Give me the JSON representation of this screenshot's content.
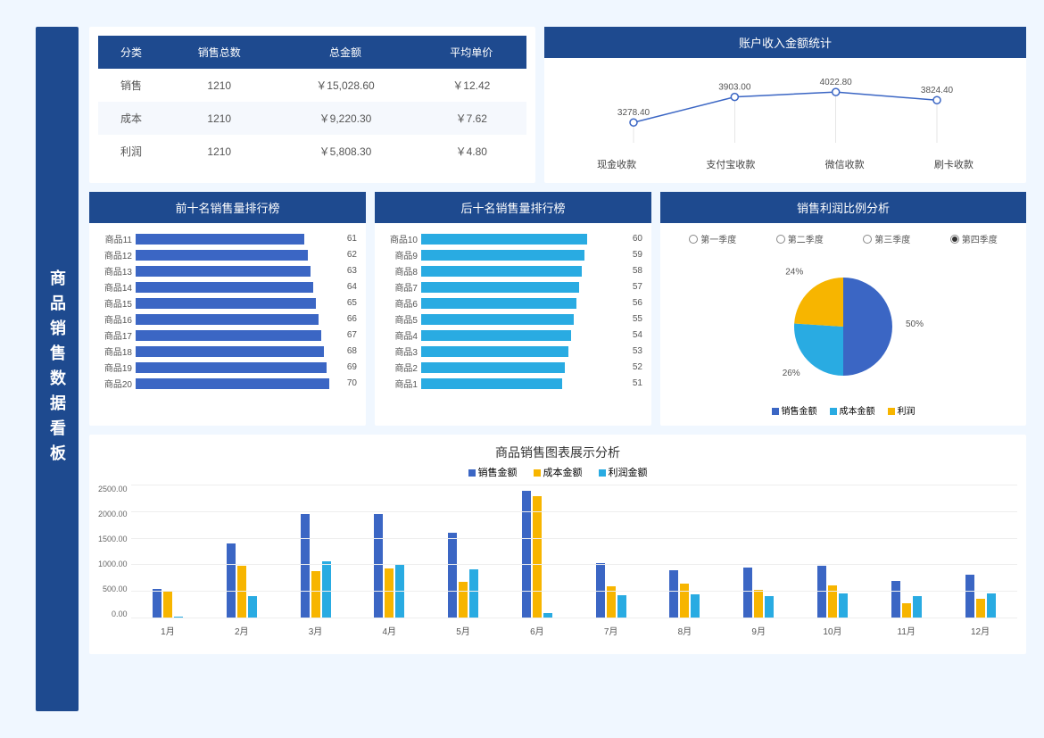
{
  "page_title": "商品销售数据看板",
  "colors": {
    "primary": "#1e4a8f",
    "blue_bar": "#3b66c4",
    "cyan_bar": "#29abe2",
    "yellow": "#f7b500",
    "bg": "#f0f7ff",
    "text": "#555555"
  },
  "summary_table": {
    "columns": [
      "分类",
      "销售总数",
      "总金额",
      "平均单价"
    ],
    "rows": [
      [
        "销售",
        "1210",
        "￥15,028.60",
        "￥12.42"
      ],
      [
        "成本",
        "1210",
        "￥9,220.30",
        "￥7.62"
      ],
      [
        "利润",
        "1210",
        "￥5,808.30",
        "￥4.80"
      ]
    ]
  },
  "line_chart": {
    "title": "账户收入金额统计",
    "categories": [
      "现金收款",
      "支付宝收款",
      "微信收款",
      "刷卡收款"
    ],
    "values": [
      3278.4,
      3903.0,
      4022.8,
      3824.4
    ],
    "labels": [
      "3278.40",
      "3903.00",
      "4022.80",
      "3824.40"
    ],
    "line_color": "#3b66c4",
    "point_fill": "#ffffff",
    "ymin": 3000,
    "ymax": 4200
  },
  "top10": {
    "title": "前十名销售量排行榜",
    "bar_color": "#3b66c4",
    "max": 75,
    "items": [
      {
        "name": "商品11",
        "value": 61
      },
      {
        "name": "商品12",
        "value": 62
      },
      {
        "name": "商品13",
        "value": 63
      },
      {
        "name": "商品14",
        "value": 64
      },
      {
        "name": "商品15",
        "value": 65
      },
      {
        "name": "商品16",
        "value": 66
      },
      {
        "name": "商品17",
        "value": 67
      },
      {
        "name": "商品18",
        "value": 68
      },
      {
        "name": "商品19",
        "value": 69
      },
      {
        "name": "商品20",
        "value": 70
      }
    ]
  },
  "bottom10": {
    "title": "后十名销售量排行榜",
    "bar_color": "#29abe2",
    "max": 75,
    "items": [
      {
        "name": "商品10",
        "value": 60
      },
      {
        "name": "商品9",
        "value": 59
      },
      {
        "name": "商品8",
        "value": 58
      },
      {
        "name": "商品7",
        "value": 57
      },
      {
        "name": "商品6",
        "value": 56
      },
      {
        "name": "商品5",
        "value": 55
      },
      {
        "name": "商品4",
        "value": 54
      },
      {
        "name": "商品3",
        "value": 53
      },
      {
        "name": "商品2",
        "value": 52
      },
      {
        "name": "商品1",
        "value": 51
      }
    ]
  },
  "pie": {
    "title": "销售利润比例分析",
    "radios": [
      "第一季度",
      "第二季度",
      "第三季度",
      "第四季度"
    ],
    "selected_index": 3,
    "slices": [
      {
        "label": "销售金额",
        "value": 50,
        "color": "#3b66c4",
        "display": "50%"
      },
      {
        "label": "成本金额",
        "value": 26,
        "color": "#29abe2",
        "display": "26%"
      },
      {
        "label": "利润",
        "value": 24,
        "color": "#f7b500",
        "display": "24%"
      }
    ]
  },
  "grouped_bar": {
    "title": "商品销售图表展示分析",
    "legend": [
      {
        "label": "销售金额",
        "color": "#3b66c4"
      },
      {
        "label": "成本金额",
        "color": "#f7b500"
      },
      {
        "label": "利润金额",
        "color": "#29abe2"
      }
    ],
    "ymax": 2500,
    "yticks": [
      "2500.00",
      "2000.00",
      "1500.00",
      "1000.00",
      "500.00",
      "0.00"
    ],
    "months": [
      {
        "label": "1月",
        "values": [
          550,
          520,
          30
        ]
      },
      {
        "label": "2月",
        "values": [
          1400,
          980,
          420
        ]
      },
      {
        "label": "3月",
        "values": [
          1950,
          880,
          1070
        ]
      },
      {
        "label": "4月",
        "values": [
          1950,
          940,
          1010
        ]
      },
      {
        "label": "5月",
        "values": [
          1600,
          680,
          920
        ]
      },
      {
        "label": "6月",
        "values": [
          2380,
          2280,
          100
        ]
      },
      {
        "label": "7月",
        "values": [
          1030,
          600,
          430
        ]
      },
      {
        "label": "8月",
        "values": [
          900,
          650,
          450
        ]
      },
      {
        "label": "9月",
        "values": [
          950,
          530,
          420
        ]
      },
      {
        "label": "10月",
        "values": [
          980,
          620,
          460
        ]
      },
      {
        "label": "11月",
        "values": [
          700,
          280,
          420
        ]
      },
      {
        "label": "12月",
        "values": [
          820,
          360,
          460
        ]
      }
    ]
  }
}
